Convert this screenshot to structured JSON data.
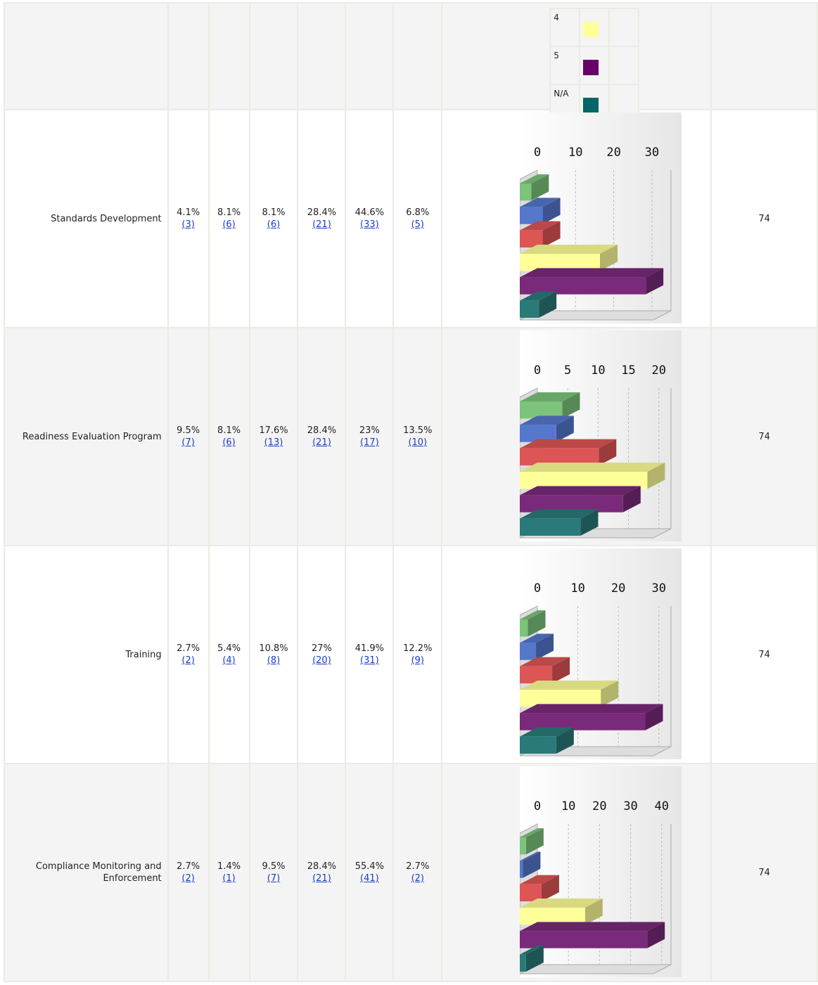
{
  "bar_colors": [
    "#7cc47c",
    "#5577cc",
    "#dd5555",
    "#ffff99",
    "#7a2a7a",
    "#2a7a7a"
  ],
  "legend": {
    "labels": [
      "4",
      "5",
      "N/A"
    ],
    "colors": [
      "#ffff99",
      "#660066",
      "#006666"
    ]
  },
  "rows": [
    {
      "label": "Standards Development",
      "percents": [
        "4.1%",
        "8.1%",
        "8.1%",
        "28.4%",
        "44.6%",
        "6.8%"
      ],
      "values": [
        3,
        6,
        6,
        21,
        33,
        5
      ],
      "value_labels": [
        "(3)",
        "(6)",
        "(6)",
        "(21)",
        "(33)",
        "(5)"
      ],
      "chart": {
        "xlim": [
          0,
          35
        ],
        "xticks": [
          0,
          10,
          20,
          30
        ]
      },
      "total": 74
    },
    {
      "label": "Readiness Evaluation Program",
      "percents": [
        "9.5%",
        "8.1%",
        "17.6%",
        "28.4%",
        "23%",
        "13.5%"
      ],
      "values": [
        7,
        6,
        13,
        21,
        17,
        10
      ],
      "value_labels": [
        "(7)",
        "(6)",
        "(13)",
        "(21)",
        "(17)",
        "(10)"
      ],
      "chart": {
        "xlim": [
          0,
          22
        ],
        "xticks": [
          0,
          5,
          10,
          15,
          20
        ]
      },
      "total": 74
    },
    {
      "label": "Training",
      "percents": [
        "2.7%",
        "5.4%",
        "10.8%",
        "27%",
        "41.9%",
        "12.2%"
      ],
      "values": [
        2,
        4,
        8,
        20,
        31,
        9
      ],
      "value_labels": [
        "(2)",
        "(4)",
        "(8)",
        "(20)",
        "(31)",
        "(9)"
      ],
      "chart": {
        "xlim": [
          0,
          33
        ],
        "xticks": [
          0,
          10,
          20,
          30
        ]
      },
      "total": 74
    },
    {
      "label": "Compliance Monitoring and Enforcement",
      "percents": [
        "2.7%",
        "1.4%",
        "9.5%",
        "28.4%",
        "55.4%",
        "2.7%"
      ],
      "values": [
        2,
        1,
        7,
        21,
        41,
        2
      ],
      "value_labels": [
        "(2)",
        "(1)",
        "(7)",
        "(21)",
        "(41)",
        "(2)"
      ],
      "chart": {
        "xlim": [
          0,
          43
        ],
        "xticks": [
          0,
          10,
          20,
          30,
          40
        ]
      },
      "total": 74
    }
  ]
}
